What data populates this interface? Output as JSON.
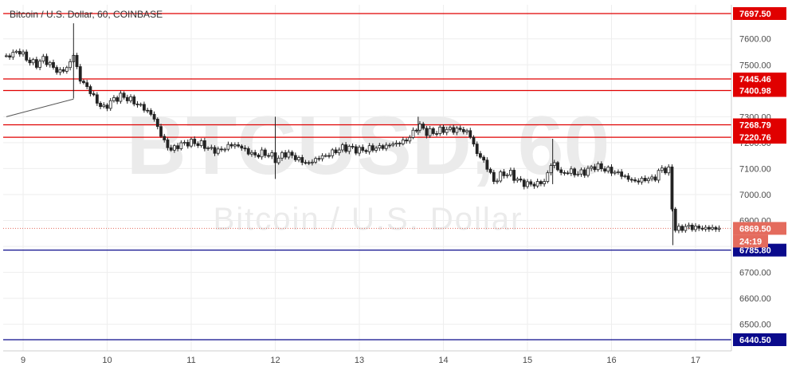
{
  "title": "Bitcoin / U.S. Dollar, 60, COINBASE",
  "watermark": {
    "symbol": "BTCUSD, 60",
    "name": "Bitcoin / U.S. Dollar"
  },
  "colors": {
    "resistance": "#e00000",
    "support": "#0a0a8c",
    "last_price": "#e46b5d",
    "candle": "#222222",
    "grid": "#eeeeee"
  },
  "chart_data": {
    "type": "candlestick",
    "ylim": [
      6420,
      7730
    ],
    "y_ticks": [
      6500,
      6600,
      6700,
      6800,
      6900,
      7000,
      7100,
      7200,
      7300,
      7400,
      7500,
      7600
    ],
    "y_tick_labels": [
      "6500.00",
      "6600.00",
      "6700.00",
      "",
      "6900.00",
      "7000.00",
      "7100.00",
      "7200.00",
      "7300.00",
      "",
      "7500.00",
      "7600.00"
    ],
    "x_tick_labels": [
      "9",
      "10",
      "11",
      "12",
      "13",
      "14",
      "15",
      "16",
      "17"
    ],
    "resistance_levels": [
      7697.5,
      7445.46,
      7400.98,
      7268.79,
      7220.76
    ],
    "support_levels": [
      6785.8,
      6440.5
    ],
    "level_labels": {
      "7697.50": "7697.50",
      "7445.46": "7445.46",
      "7400.98": "7400.98",
      "7268.79": "7268.79",
      "7220.76": "7220.76",
      "6785.80": "6785.80",
      "6440.50": "6440.50"
    },
    "last_price": 6869.5,
    "last_price_label": "6869.50",
    "countdown": "24:19",
    "trendline": {
      "from": [
        8.8,
        7300
      ],
      "to": [
        9.6,
        7368
      ]
    },
    "close_path": [
      [
        8.8,
        7530
      ],
      [
        8.95,
        7555
      ],
      [
        9.05,
        7520
      ],
      [
        9.15,
        7500
      ],
      [
        9.25,
        7525
      ],
      [
        9.35,
        7490
      ],
      [
        9.45,
        7470
      ],
      [
        9.55,
        7500
      ],
      [
        9.6,
        7540
      ],
      [
        9.68,
        7440
      ],
      [
        9.75,
        7420
      ],
      [
        9.85,
        7370
      ],
      [
        9.95,
        7330
      ],
      [
        10.05,
        7360
      ],
      [
        10.15,
        7380
      ],
      [
        10.25,
        7370
      ],
      [
        10.35,
        7350
      ],
      [
        10.45,
        7330
      ],
      [
        10.55,
        7300
      ],
      [
        10.65,
        7220
      ],
      [
        10.75,
        7170
      ],
      [
        10.85,
        7190
      ],
      [
        10.95,
        7200
      ],
      [
        11.05,
        7200
      ],
      [
        11.15,
        7190
      ],
      [
        11.25,
        7170
      ],
      [
        11.35,
        7170
      ],
      [
        11.45,
        7190
      ],
      [
        11.55,
        7190
      ],
      [
        11.65,
        7170
      ],
      [
        11.75,
        7150
      ],
      [
        11.85,
        7160
      ],
      [
        11.95,
        7150
      ],
      [
        12.02,
        7130
      ],
      [
        12.1,
        7160
      ],
      [
        12.2,
        7150
      ],
      [
        12.3,
        7130
      ],
      [
        12.4,
        7120
      ],
      [
        12.5,
        7140
      ],
      [
        12.6,
        7150
      ],
      [
        12.7,
        7165
      ],
      [
        12.8,
        7180
      ],
      [
        12.9,
        7180
      ],
      [
        13.0,
        7170
      ],
      [
        13.1,
        7175
      ],
      [
        13.2,
        7180
      ],
      [
        13.3,
        7185
      ],
      [
        13.4,
        7195
      ],
      [
        13.5,
        7200
      ],
      [
        13.6,
        7220
      ],
      [
        13.7,
        7270
      ],
      [
        13.8,
        7240
      ],
      [
        13.9,
        7240
      ],
      [
        14.0,
        7250
      ],
      [
        14.1,
        7250
      ],
      [
        14.2,
        7250
      ],
      [
        14.3,
        7240
      ],
      [
        14.4,
        7160
      ],
      [
        14.5,
        7120
      ],
      [
        14.6,
        7050
      ],
      [
        14.7,
        7080
      ],
      [
        14.8,
        7080
      ],
      [
        14.9,
        7050
      ],
      [
        15.0,
        7040
      ],
      [
        15.1,
        7040
      ],
      [
        15.2,
        7050
      ],
      [
        15.3,
        7130
      ],
      [
        15.4,
        7080
      ],
      [
        15.5,
        7090
      ],
      [
        15.6,
        7080
      ],
      [
        15.7,
        7090
      ],
      [
        15.8,
        7110
      ],
      [
        15.9,
        7100
      ],
      [
        16.0,
        7090
      ],
      [
        16.1,
        7080
      ],
      [
        16.2,
        7060
      ],
      [
        16.3,
        7050
      ],
      [
        16.4,
        7060
      ],
      [
        16.5,
        7060
      ],
      [
        16.6,
        7100
      ],
      [
        16.7,
        7090
      ],
      [
        16.73,
        6880
      ],
      [
        16.78,
        6860
      ],
      [
        16.85,
        6875
      ],
      [
        16.95,
        6875
      ],
      [
        17.05,
        6870
      ],
      [
        17.15,
        6870
      ],
      [
        17.3,
        6869.5
      ]
    ],
    "spikes": [
      {
        "x": 9.6,
        "low": 7370,
        "high": 7660
      },
      {
        "x": 12.0,
        "low": 7060,
        "high": 7300
      },
      {
        "x": 13.7,
        "low": 7230,
        "high": 7300
      },
      {
        "x": 15.3,
        "low": 7040,
        "high": 7215
      },
      {
        "x": 16.73,
        "low": 6805,
        "high": 7080
      }
    ]
  }
}
